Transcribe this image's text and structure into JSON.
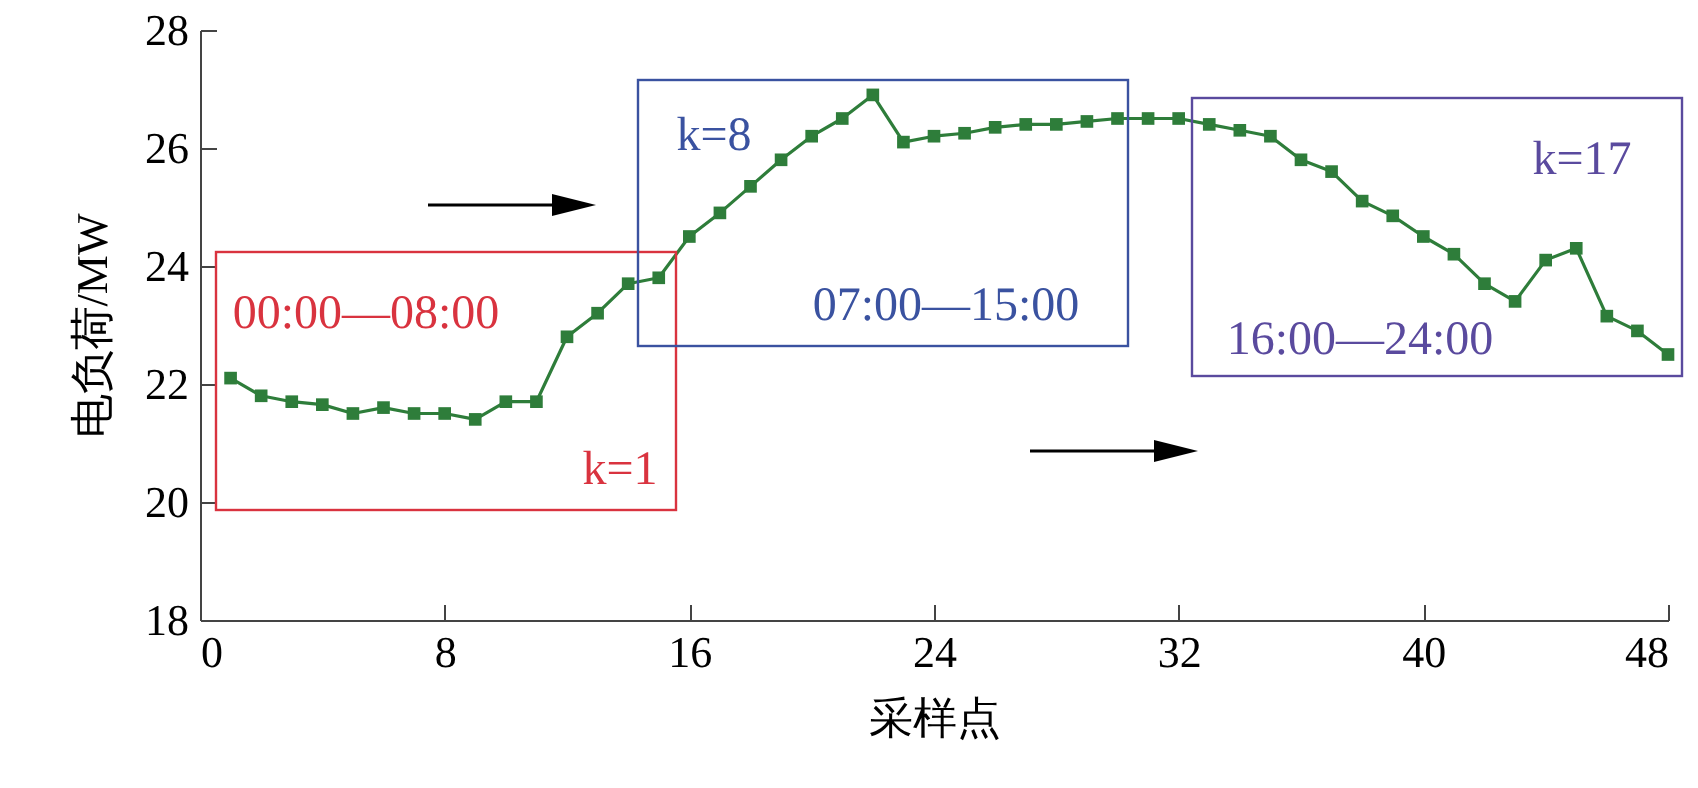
{
  "chart_data": {
    "type": "line",
    "xlabel": "采样点",
    "ylabel": "电负荷/MW",
    "x": [
      1,
      2,
      3,
      4,
      5,
      6,
      7,
      8,
      9,
      10,
      11,
      12,
      13,
      14,
      15,
      16,
      17,
      18,
      19,
      20,
      21,
      22,
      23,
      24,
      25,
      26,
      27,
      28,
      29,
      30,
      31,
      32,
      33,
      34,
      35,
      36,
      37,
      38,
      39,
      40,
      41,
      42,
      43,
      44,
      45,
      46,
      47,
      48
    ],
    "series": [
      {
        "color": "#2e7d3a",
        "values": [
          22.1,
          21.8,
          21.7,
          21.65,
          21.5,
          21.6,
          21.5,
          21.5,
          21.4,
          21.7,
          21.7,
          22.8,
          23.2,
          23.7,
          23.8,
          24.5,
          24.9,
          25.35,
          25.8,
          26.2,
          26.5,
          26.9,
          26.1,
          26.2,
          26.25,
          26.35,
          26.4,
          26.4,
          26.45,
          26.5,
          26.5,
          26.5,
          26.4,
          26.3,
          26.2,
          25.8,
          25.6,
          25.1,
          24.85,
          24.5,
          24.2,
          23.7,
          23.4,
          24.1,
          24.3,
          23.15,
          22.9,
          22.5
        ]
      }
    ],
    "xlim": [
      0,
      48
    ],
    "xticks": [
      0,
      8,
      16,
      24,
      32,
      40,
      48
    ],
    "ylim": [
      18,
      28
    ],
    "yticks": [
      18,
      20,
      22,
      24,
      26,
      28
    ],
    "marker": "square",
    "line_style": "solid",
    "annotations": [
      "00:00—08:00",
      "k=1",
      "k=8",
      "07:00—15:00",
      "k=17",
      "16:00—24:00"
    ]
  }
}
